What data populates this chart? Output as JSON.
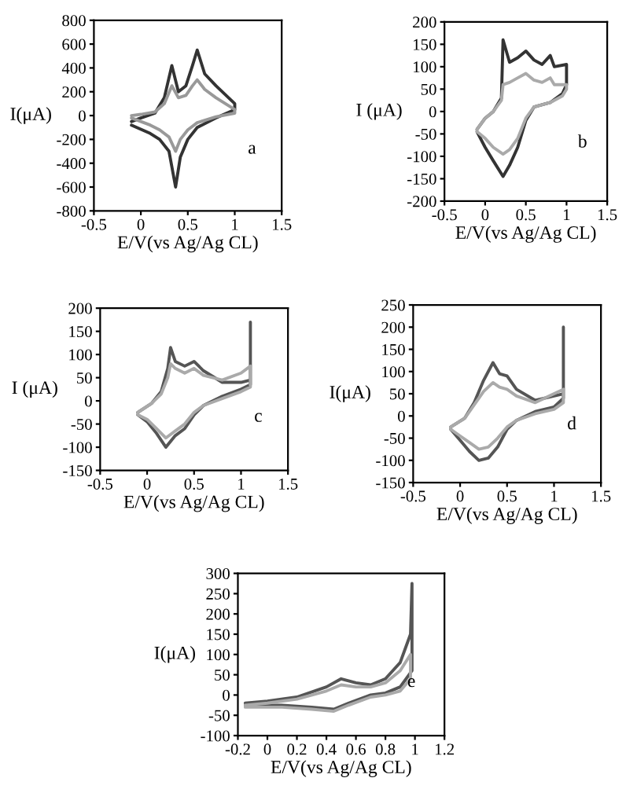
{
  "chart_data": [
    {
      "type": "line",
      "xlabel": "E/V(vs Ag/Ag CL)",
      "ylabel": "I(μA)",
      "annotations": [
        "a"
      ],
      "xlim": [
        -0.5,
        1.5
      ],
      "xticks": [
        -0.5,
        0,
        0.5,
        1,
        1.5
      ],
      "ylim": [
        -800,
        800
      ],
      "yticks": [
        -800,
        -600,
        -400,
        -200,
        0,
        200,
        400,
        600,
        800
      ],
      "series": [
        {
          "color": "#333333",
          "x": [
            -0.1,
            0,
            0.15,
            0.25,
            0.33,
            0.4,
            0.48,
            0.55,
            0.6,
            0.68,
            0.8,
            1,
            1,
            0.8,
            0.6,
            0.5,
            0.42,
            0.37,
            0.3,
            0.2,
            0.1,
            -0.1
          ],
          "values": [
            -50,
            -20,
            20,
            150,
            420,
            200,
            250,
            420,
            550,
            350,
            250,
            100,
            50,
            -20,
            -100,
            -200,
            -350,
            -600,
            -300,
            -200,
            -150,
            -80
          ]
        },
        {
          "color": "#999999",
          "x": [
            -0.1,
            0,
            0.15,
            0.25,
            0.33,
            0.4,
            0.48,
            0.55,
            0.6,
            0.68,
            0.8,
            1,
            1,
            0.8,
            0.6,
            0.5,
            0.42,
            0.37,
            0.3,
            0.2,
            0.1,
            -0.1
          ],
          "values": [
            0,
            10,
            30,
            100,
            250,
            150,
            170,
            250,
            300,
            220,
            150,
            50,
            20,
            -10,
            -60,
            -120,
            -200,
            -300,
            -180,
            -120,
            -80,
            -20
          ]
        }
      ]
    },
    {
      "type": "line",
      "xlabel": "E/V(vs Ag/Ag CL)",
      "ylabel": "I (μA)",
      "annotations": [
        "b"
      ],
      "xlim": [
        -0.5,
        1.5
      ],
      "xticks": [
        -0.5,
        0,
        0.5,
        1,
        1.5
      ],
      "ylim": [
        -200,
        200
      ],
      "yticks": [
        -200,
        -150,
        -100,
        -50,
        0,
        50,
        100,
        150,
        200
      ],
      "series": [
        {
          "color": "#333333",
          "x": [
            -0.1,
            0,
            0.1,
            0.2,
            0.22,
            0.3,
            0.4,
            0.5,
            0.6,
            0.7,
            0.8,
            0.85,
            1,
            1,
            0.95,
            0.8,
            0.6,
            0.5,
            0.4,
            0.3,
            0.22,
            0.1,
            0,
            -0.1
          ],
          "values": [
            -40,
            -15,
            0,
            30,
            160,
            110,
            120,
            135,
            115,
            105,
            125,
            100,
            105,
            60,
            40,
            20,
            10,
            -20,
            -80,
            -120,
            -145,
            -110,
            -80,
            -45
          ]
        },
        {
          "color": "#aaaaaa",
          "x": [
            -0.1,
            0,
            0.1,
            0.2,
            0.22,
            0.3,
            0.4,
            0.5,
            0.6,
            0.7,
            0.8,
            0.85,
            1,
            1,
            0.95,
            0.8,
            0.6,
            0.5,
            0.4,
            0.3,
            0.22,
            0.1,
            0,
            -0.1
          ],
          "values": [
            -40,
            -15,
            0,
            25,
            60,
            65,
            75,
            85,
            70,
            65,
            75,
            60,
            60,
            50,
            35,
            20,
            10,
            -15,
            -60,
            -85,
            -95,
            -80,
            -60,
            -45
          ]
        }
      ]
    },
    {
      "type": "line",
      "xlabel": "E/V(vs Ag/Ag CL)",
      "ylabel": "I (μA)",
      "annotations": [
        "c"
      ],
      "xlim": [
        -0.5,
        1.5
      ],
      "xticks": [
        -0.5,
        0,
        0.5,
        1,
        1.5
      ],
      "ylim": [
        -150,
        200
      ],
      "yticks": [
        -150,
        -100,
        -50,
        0,
        50,
        100,
        150,
        200
      ],
      "series": [
        {
          "color": "#555555",
          "x": [
            -0.1,
            0.05,
            0.15,
            0.22,
            0.25,
            0.3,
            0.4,
            0.5,
            0.6,
            0.8,
            1,
            1.1,
            1.1,
            1.1,
            1,
            0.8,
            0.6,
            0.5,
            0.4,
            0.3,
            0.2,
            0.1,
            0,
            -0.1
          ],
          "values": [
            -25,
            -5,
            20,
            70,
            115,
            85,
            75,
            85,
            65,
            40,
            40,
            45,
            170,
            35,
            25,
            10,
            -10,
            -30,
            -60,
            -75,
            -100,
            -70,
            -45,
            -30
          ]
        },
        {
          "color": "#aaaaaa",
          "x": [
            -0.1,
            0.05,
            0.15,
            0.22,
            0.25,
            0.3,
            0.4,
            0.5,
            0.6,
            0.8,
            1,
            1.1,
            1.1,
            1,
            0.8,
            0.6,
            0.5,
            0.4,
            0.3,
            0.2,
            0.1,
            0,
            -0.1
          ],
          "values": [
            -25,
            -5,
            15,
            50,
            80,
            70,
            60,
            70,
            55,
            45,
            60,
            75,
            30,
            20,
            5,
            -10,
            -25,
            -50,
            -65,
            -80,
            -60,
            -40,
            -30
          ]
        }
      ]
    },
    {
      "type": "line",
      "xlabel": "E/V(vs Ag/Ag CL)",
      "ylabel": "I(μA)",
      "annotations": [
        "d"
      ],
      "xlim": [
        -0.5,
        1.5
      ],
      "xticks": [
        -0.5,
        0,
        0.5,
        1,
        1.5
      ],
      "ylim": [
        -150,
        250
      ],
      "yticks": [
        -150,
        -100,
        -50,
        0,
        50,
        100,
        150,
        200,
        250
      ],
      "series": [
        {
          "color": "#555555",
          "x": [
            -0.1,
            0.05,
            0.15,
            0.25,
            0.35,
            0.42,
            0.5,
            0.6,
            0.8,
            1,
            1.1,
            1.1,
            1.1,
            1,
            0.8,
            0.6,
            0.5,
            0.4,
            0.3,
            0.2,
            0.1,
            0,
            -0.1
          ],
          "values": [
            -25,
            -5,
            30,
            80,
            120,
            95,
            90,
            60,
            35,
            45,
            50,
            200,
            40,
            20,
            10,
            -10,
            -30,
            -70,
            -95,
            -100,
            -80,
            -55,
            -30
          ]
        },
        {
          "color": "#aaaaaa",
          "x": [
            -0.1,
            0.05,
            0.15,
            0.25,
            0.35,
            0.42,
            0.5,
            0.6,
            0.8,
            1,
            1.1,
            1.1,
            1,
            0.8,
            0.6,
            0.5,
            0.4,
            0.3,
            0.2,
            0.1,
            0,
            -0.1
          ],
          "values": [
            -25,
            -5,
            25,
            55,
            75,
            65,
            60,
            45,
            30,
            50,
            60,
            30,
            15,
            5,
            -10,
            -25,
            -50,
            -70,
            -75,
            -60,
            -45,
            -30
          ]
        }
      ]
    },
    {
      "type": "line",
      "xlabel": "E/V(vs Ag/Ag CL)",
      "ylabel": "I(μA)",
      "annotations": [
        "e"
      ],
      "xlim": [
        -0.2,
        1.2
      ],
      "xticks": [
        -0.2,
        0,
        0.2,
        0.4,
        0.6,
        0.8,
        1,
        1.2
      ],
      "ylim": [
        -100,
        300
      ],
      "yticks": [
        -100,
        -50,
        0,
        50,
        100,
        150,
        200,
        250,
        300
      ],
      "series": [
        {
          "color": "#555555",
          "x": [
            -0.15,
            0,
            0.2,
            0.4,
            0.5,
            0.6,
            0.7,
            0.8,
            0.9,
            0.97,
            0.98,
            0.98,
            0.9,
            0.8,
            0.7,
            0.55,
            0.45,
            0.3,
            0.1,
            -0.15
          ],
          "values": [
            -20,
            -15,
            -5,
            20,
            40,
            30,
            25,
            40,
            80,
            150,
            275,
            60,
            20,
            5,
            0,
            -20,
            -35,
            -30,
            -25,
            -25
          ]
        },
        {
          "color": "#aaaaaa",
          "x": [
            -0.15,
            0,
            0.2,
            0.4,
            0.5,
            0.6,
            0.7,
            0.8,
            0.9,
            0.97,
            0.97,
            0.9,
            0.8,
            0.7,
            0.55,
            0.45,
            0.3,
            0.1,
            -0.15
          ],
          "values": [
            -25,
            -20,
            -10,
            10,
            25,
            20,
            20,
            30,
            60,
            100,
            40,
            10,
            0,
            -5,
            -25,
            -40,
            -35,
            -30,
            -30
          ]
        }
      ]
    }
  ]
}
